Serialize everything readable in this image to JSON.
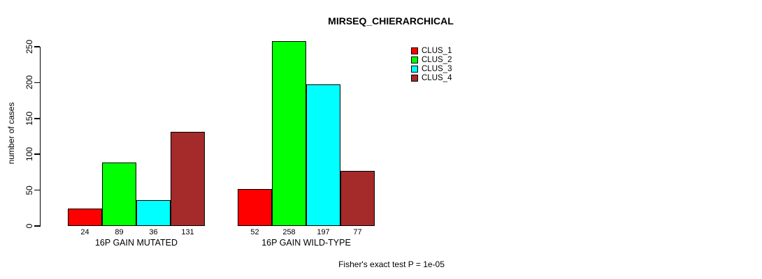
{
  "chart_data": {
    "type": "bar",
    "title": "MIRSEQ_CHIERARCHICAL",
    "ylabel": "number of cases",
    "xlabel": "",
    "ylim": [
      0,
      250
    ],
    "yticks": [
      0,
      50,
      100,
      150,
      200,
      250
    ],
    "grid": false,
    "legend_position": "top-right",
    "legend": [
      {
        "label": "CLUS_1",
        "color": "#FF0000"
      },
      {
        "label": "CLUS_2",
        "color": "#00FF00"
      },
      {
        "label": "CLUS_3",
        "color": "#00FFFF"
      },
      {
        "label": "CLUS_4",
        "color": "#A52A2A"
      }
    ],
    "categories": [
      "16P GAIN MUTATED",
      "16P GAIN WILD-TYPE"
    ],
    "series": [
      {
        "name": "CLUS_1",
        "values": [
          24,
          52
        ]
      },
      {
        "name": "CLUS_2",
        "values": [
          89,
          258
        ]
      },
      {
        "name": "CLUS_3",
        "values": [
          36,
          197
        ]
      },
      {
        "name": "CLUS_4",
        "values": [
          131,
          77
        ]
      }
    ],
    "groups": [
      {
        "label": "16P GAIN MUTATED",
        "values": [
          24,
          89,
          36,
          131
        ]
      },
      {
        "label": "16P GAIN WILD-TYPE",
        "values": [
          52,
          258,
          197,
          77
        ]
      }
    ],
    "bar_value_labels": [
      [
        24,
        89,
        36,
        131
      ],
      [
        52,
        258,
        197,
        77
      ]
    ],
    "annotation": "Fisher's exact test P = 1e-05",
    "colors": {
      "axis": "#000000",
      "background": "#FFFFFF",
      "bar_border": "#000000"
    }
  }
}
